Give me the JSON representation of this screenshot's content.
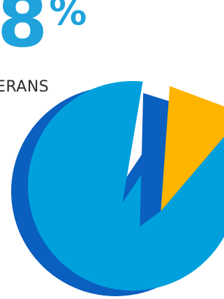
{
  "headline": {
    "value": "8",
    "unit": "%"
  },
  "label": "ERANS",
  "chart_data": {
    "type": "pie",
    "style": "3d-exploded",
    "slices": [
      {
        "value": 92,
        "color": "#00a0dc",
        "shadow_color": "#0a5fbf"
      },
      {
        "value": 8,
        "color": "#ffb400",
        "shadow_color": "#0a5fbf",
        "exploded": true
      }
    ]
  }
}
